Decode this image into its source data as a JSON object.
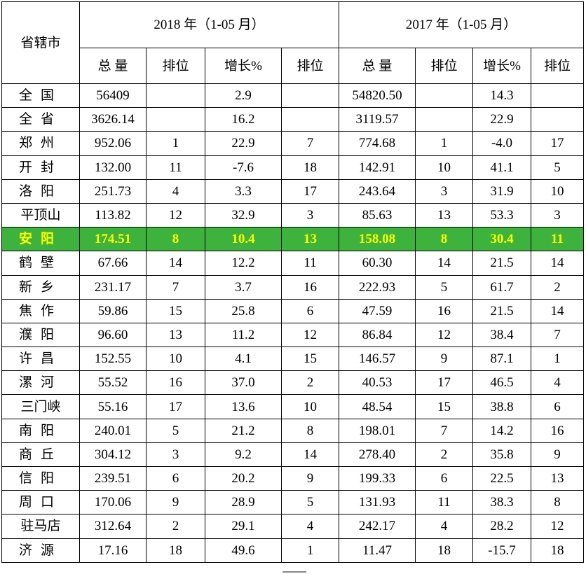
{
  "header": {
    "city_label": "省辖市",
    "year_2018": "2018 年（1-05 月）",
    "year_2017": "2017 年（1-05 月）",
    "cols_2018": [
      "总 量",
      "排位",
      "增长%",
      "排位"
    ],
    "cols_2017": [
      "总 量",
      "排位",
      "增长%",
      "排位"
    ]
  },
  "highlight_color": "#3db33d",
  "highlight_text_color": "#ffff00",
  "rows": [
    {
      "name": "全国",
      "v": [
        "56409",
        "",
        "2.9",
        "",
        "54820.50",
        "",
        "14.3",
        ""
      ]
    },
    {
      "name": "全省",
      "v": [
        "3626.14",
        "",
        "16.2",
        "",
        "3119.57",
        "",
        "22.9",
        ""
      ]
    },
    {
      "name": "郑州",
      "v": [
        "952.06",
        "1",
        "22.9",
        "7",
        "774.68",
        "1",
        "-4.0",
        "17"
      ]
    },
    {
      "name": "开封",
      "v": [
        "132.00",
        "11",
        "-7.6",
        "18",
        "142.91",
        "10",
        "41.1",
        "5"
      ]
    },
    {
      "name": "洛阳",
      "v": [
        "251.73",
        "4",
        "3.3",
        "17",
        "243.64",
        "3",
        "31.9",
        "10"
      ]
    },
    {
      "name": "平顶山",
      "v": [
        "113.82",
        "12",
        "32.9",
        "3",
        "85.63",
        "13",
        "53.3",
        "3"
      ]
    },
    {
      "name": "安阳",
      "highlight": true,
      "v": [
        "174.51",
        "8",
        "10.4",
        "13",
        "158.08",
        "8",
        "30.4",
        "11"
      ]
    },
    {
      "name": "鹤壁",
      "v": [
        "67.66",
        "14",
        "12.2",
        "11",
        "60.30",
        "14",
        "21.5",
        "14"
      ]
    },
    {
      "name": "新乡",
      "v": [
        "231.17",
        "7",
        "3.7",
        "16",
        "222.93",
        "5",
        "61.7",
        "2"
      ]
    },
    {
      "name": "焦作",
      "v": [
        "59.86",
        "15",
        "25.8",
        "6",
        "47.59",
        "16",
        "21.5",
        "14"
      ]
    },
    {
      "name": "濮阳",
      "v": [
        "96.60",
        "13",
        "11.2",
        "12",
        "86.84",
        "12",
        "38.4",
        "7"
      ]
    },
    {
      "name": "许昌",
      "v": [
        "152.55",
        "10",
        "4.1",
        "15",
        "146.57",
        "9",
        "87.1",
        "1"
      ]
    },
    {
      "name": "漯河",
      "v": [
        "55.52",
        "16",
        "37.0",
        "2",
        "40.53",
        "17",
        "46.5",
        "4"
      ]
    },
    {
      "name": "三门峡",
      "v": [
        "55.16",
        "17",
        "13.6",
        "10",
        "48.54",
        "15",
        "38.8",
        "6"
      ]
    },
    {
      "name": "南阳",
      "v": [
        "240.01",
        "5",
        "21.2",
        "8",
        "198.01",
        "7",
        "14.2",
        "16"
      ]
    },
    {
      "name": "商丘",
      "v": [
        "304.12",
        "3",
        "9.2",
        "14",
        "278.40",
        "2",
        "35.8",
        "9"
      ]
    },
    {
      "name": "信阳",
      "v": [
        "239.51",
        "6",
        "20.2",
        "9",
        "199.33",
        "6",
        "22.5",
        "13"
      ]
    },
    {
      "name": "周口",
      "v": [
        "170.06",
        "9",
        "28.9",
        "5",
        "131.93",
        "11",
        "38.3",
        "8"
      ]
    },
    {
      "name": "驻马店",
      "v": [
        "312.64",
        "2",
        "29.1",
        "4",
        "242.17",
        "4",
        "28.2",
        "12"
      ]
    },
    {
      "name": "济源",
      "v": [
        "17.16",
        "18",
        "49.6",
        "1",
        "11.47",
        "18",
        "-15.7",
        "18"
      ]
    }
  ]
}
